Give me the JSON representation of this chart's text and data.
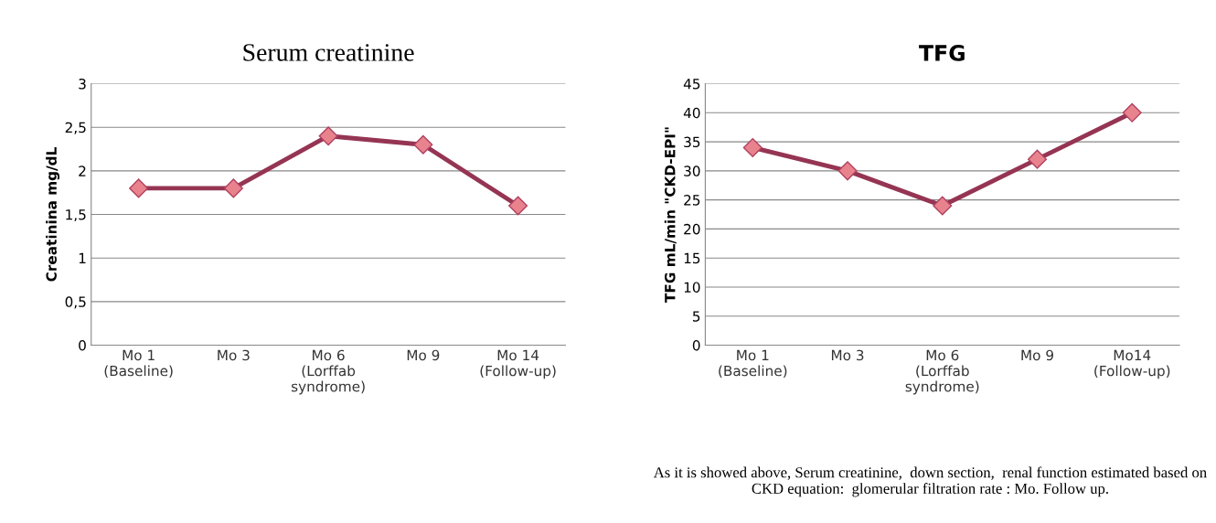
{
  "chart_data": [
    {
      "type": "line",
      "title": "Serum creatinine",
      "ylabel": "Creatinina mg/dL",
      "categories": [
        "Mo 1\n(Baseline)",
        "Mo 3",
        "Mo 6\n(Lorffab\nsyndrome)",
        "Mo 9",
        "Mo 14\n(Follow-up)"
      ],
      "series": [
        {
          "color": "#953553",
          "values": [
            1.8,
            1.8,
            2.4,
            2.3,
            1.6
          ]
        }
      ],
      "ylim": [
        0,
        3
      ],
      "yticks": [
        {
          "value": 0,
          "label": "0"
        },
        {
          "value": 0.5,
          "label": "0,5"
        },
        {
          "value": 1,
          "label": "1"
        },
        {
          "value": 1.5,
          "label": "1,5"
        },
        {
          "value": 2,
          "label": "2"
        },
        {
          "value": 2.5,
          "label": "2,5"
        },
        {
          "value": 3,
          "label": "3"
        }
      ],
      "grid": "y",
      "marker": "diamond",
      "line_style": "solid",
      "legend": false
    },
    {
      "type": "line",
      "title": "TFG",
      "ylabel": "TFG mL/min \"CKD-EPI\"",
      "categories": [
        "Mo 1\n(Baseline)",
        "Mo 3",
        "Mo 6\n(Lorffab\nsyndrome)",
        "Mo 9",
        "Mo14\n(Follow-up)"
      ],
      "series": [
        {
          "color": "#953553",
          "values": [
            34,
            30,
            24,
            32,
            40
          ]
        }
      ],
      "ylim": [
        0,
        45
      ],
      "yticks": [
        0,
        5,
        10,
        15,
        20,
        25,
        30,
        35,
        40,
        45
      ],
      "grid": "y",
      "marker": "diamond",
      "line_style": "solid",
      "legend": false,
      "annotations": [
        "As it is showed above, Serum creatinine,  down section,  renal function estimated based on CKD equation:  glomerular filtration rate : Mo. Follow up."
      ]
    }
  ]
}
